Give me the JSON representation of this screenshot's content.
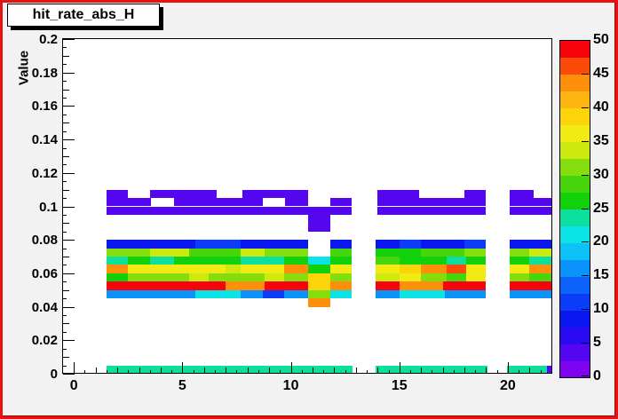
{
  "title": "hit_rate_abs_H",
  "window": {
    "background": "#f2f2f2",
    "border_color": "#e51313",
    "border_dark_edge": "#8f0f0f",
    "plot_background": "#ffffff"
  },
  "y_axis": {
    "title": "Value",
    "min": 0,
    "max": 0.2,
    "major_tick_values": [
      0,
      0.02,
      0.04,
      0.06,
      0.08,
      0.1,
      0.12,
      0.14,
      0.16,
      0.18,
      0.2
    ],
    "major_tick_labels": [
      "0",
      "0.02",
      "0.04",
      "0.06",
      "0.08",
      "0.1",
      "0.12",
      "0.14",
      "0.16",
      "0.18",
      "0.2"
    ]
  },
  "x_axis": {
    "title": "",
    "min": -0.5,
    "max": 22.05,
    "major_tick_values": [
      0,
      5,
      10,
      15,
      20
    ],
    "major_tick_labels": [
      "0",
      "5",
      "10",
      "15",
      "20"
    ]
  },
  "color_scale": {
    "min": 0,
    "max": 50,
    "tick_values": [
      0,
      5,
      10,
      15,
      20,
      25,
      30,
      35,
      40,
      45,
      50
    ],
    "tick_labels": [
      "0",
      "5",
      "10",
      "15",
      "20",
      "25",
      "30",
      "35",
      "40",
      "45",
      "50"
    ],
    "band_size": 2.5,
    "colors_bottom_to_top": [
      "#7e03f1",
      "#5406f0",
      "#2a0af0",
      "#0b17f0",
      "#0b3cf7",
      "#0b63fa",
      "#0b93fb",
      "#0cc2f7",
      "#0ce3e6",
      "#0cdf9e",
      "#12d10b",
      "#46d60b",
      "#84dd0c",
      "#cdea0e",
      "#f1ea13",
      "#fcd40b",
      "#feb511",
      "#fd8f0b",
      "#fb4b09",
      "#f7030c"
    ]
  },
  "chart_data": {
    "type": "heatmap",
    "title": "hit_rate_abs_H",
    "xlabel": "",
    "ylabel": "Value",
    "x_range": [
      -0.5,
      22.05
    ],
    "y_range": [
      0,
      0.2
    ],
    "z_range": [
      0,
      50
    ],
    "y_bin_height": 0.005,
    "empty_bins": "white",
    "rows": [
      {
        "y0": 0.105,
        "runs": [
          [
            1.5,
            2.5,
            4
          ],
          [
            3.5,
            6.6,
            4
          ],
          [
            7.75,
            10.8,
            4
          ],
          [
            14.0,
            15.9,
            4
          ],
          [
            18.0,
            19.0,
            4
          ],
          [
            20.1,
            21.2,
            4
          ]
        ]
      },
      {
        "y0": 0.1,
        "runs": [
          [
            1.5,
            3.55,
            4
          ],
          [
            4.6,
            8.7,
            4
          ],
          [
            9.75,
            10.8,
            4
          ],
          [
            11.8,
            12.8,
            4
          ],
          [
            14.0,
            19.0,
            4
          ],
          [
            20.1,
            22.0,
            4
          ]
        ]
      },
      {
        "y0": 0.095,
        "runs": [
          [
            1.5,
            12.8,
            4
          ],
          [
            14.0,
            19.0,
            4
          ],
          [
            20.1,
            22.0,
            4
          ]
        ]
      },
      {
        "y0": 0.09,
        "runs": [
          [
            10.8,
            11.8,
            4
          ]
        ]
      },
      {
        "y0": 0.085,
        "runs": [
          [
            10.8,
            11.8,
            4
          ]
        ]
      },
      {
        "y0": 0.075,
        "runs": [
          [
            1.5,
            5.6,
            9
          ],
          [
            5.6,
            7.7,
            11
          ],
          [
            7.7,
            10.8,
            9
          ],
          [
            11.8,
            12.8,
            9
          ],
          [
            13.9,
            15.0,
            9
          ],
          [
            15.0,
            16.0,
            11
          ],
          [
            16.0,
            18.0,
            9
          ],
          [
            18.0,
            19.0,
            11
          ],
          [
            20.1,
            22.0,
            9
          ]
        ]
      },
      {
        "y0": 0.07,
        "runs": [
          [
            1.5,
            3.5,
            31
          ],
          [
            3.5,
            5.3,
            34
          ],
          [
            5.3,
            7.7,
            29
          ],
          [
            7.7,
            8.8,
            34
          ],
          [
            8.8,
            10.8,
            31
          ],
          [
            11.8,
            12.8,
            29
          ],
          [
            13.9,
            16.0,
            26
          ],
          [
            16.0,
            18.0,
            29
          ],
          [
            18.0,
            19.0,
            31
          ],
          [
            20.1,
            21.0,
            31
          ],
          [
            21.0,
            22.0,
            34
          ]
        ]
      },
      {
        "y0": 0.065,
        "runs": [
          [
            1.5,
            2.5,
            24
          ],
          [
            2.5,
            3.5,
            26
          ],
          [
            3.5,
            4.6,
            24
          ],
          [
            4.6,
            7.7,
            26
          ],
          [
            7.7,
            9.7,
            24
          ],
          [
            9.7,
            10.8,
            26
          ],
          [
            10.8,
            11.8,
            21
          ],
          [
            11.8,
            12.8,
            26
          ],
          [
            13.9,
            15.0,
            29
          ],
          [
            15.0,
            17.2,
            26
          ],
          [
            17.2,
            18.1,
            24
          ],
          [
            18.1,
            19.0,
            26
          ],
          [
            20.1,
            21.0,
            26
          ],
          [
            21.0,
            22.0,
            24
          ]
        ]
      },
      {
        "y0": 0.06,
        "runs": [
          [
            1.5,
            2.5,
            44
          ],
          [
            2.5,
            7.0,
            36
          ],
          [
            7.0,
            7.7,
            34
          ],
          [
            7.7,
            9.7,
            36
          ],
          [
            9.7,
            10.8,
            44
          ],
          [
            10.8,
            11.8,
            26
          ],
          [
            11.8,
            12.8,
            36
          ],
          [
            13.9,
            15.0,
            36
          ],
          [
            15.0,
            16.0,
            39
          ],
          [
            16.0,
            17.2,
            44
          ],
          [
            17.2,
            18.1,
            46
          ],
          [
            18.1,
            19.0,
            36
          ],
          [
            20.1,
            21.0,
            36
          ],
          [
            21.0,
            22.0,
            44
          ]
        ]
      },
      {
        "y0": 0.055,
        "runs": [
          [
            1.5,
            2.5,
            26
          ],
          [
            2.5,
            5.3,
            31
          ],
          [
            5.3,
            6.2,
            34
          ],
          [
            6.2,
            8.8,
            31
          ],
          [
            8.8,
            9.7,
            34
          ],
          [
            9.7,
            10.8,
            31
          ],
          [
            10.8,
            11.8,
            39
          ],
          [
            11.8,
            12.8,
            31
          ],
          [
            13.9,
            15.0,
            34
          ],
          [
            15.0,
            16.0,
            36
          ],
          [
            16.0,
            17.2,
            31
          ],
          [
            17.2,
            18.1,
            29
          ],
          [
            18.1,
            19.0,
            36
          ],
          [
            20.1,
            21.0,
            31
          ],
          [
            21.0,
            22.0,
            29
          ]
        ]
      },
      {
        "y0": 0.05,
        "runs": [
          [
            1.5,
            7.0,
            49
          ],
          [
            7.0,
            8.8,
            44
          ],
          [
            8.8,
            10.8,
            49
          ],
          [
            10.8,
            11.8,
            39
          ],
          [
            11.8,
            12.8,
            44
          ],
          [
            13.9,
            15.0,
            49
          ],
          [
            15.0,
            17.0,
            44
          ],
          [
            17.0,
            19.0,
            49
          ],
          [
            20.1,
            22.0,
            49
          ]
        ]
      },
      {
        "y0": 0.045,
        "runs": [
          [
            1.5,
            5.6,
            16
          ],
          [
            5.6,
            7.7,
            21
          ],
          [
            7.7,
            8.7,
            16
          ],
          [
            8.7,
            9.7,
            11
          ],
          [
            9.7,
            10.8,
            16
          ],
          [
            10.8,
            11.8,
            31
          ],
          [
            11.8,
            12.8,
            21
          ],
          [
            13.9,
            15.0,
            16
          ],
          [
            15.0,
            17.1,
            21
          ],
          [
            17.1,
            19.0,
            16
          ],
          [
            20.1,
            22.0,
            16
          ]
        ]
      },
      {
        "y0": 0.04,
        "runs": [
          [
            10.8,
            11.8,
            44
          ]
        ]
      },
      {
        "y0": 0.0,
        "runs": [
          [
            1.5,
            12.85,
            24
          ],
          [
            13.9,
            19.05,
            24
          ],
          [
            19.95,
            21.8,
            24
          ],
          [
            21.8,
            22.0,
            4
          ]
        ]
      }
    ]
  }
}
